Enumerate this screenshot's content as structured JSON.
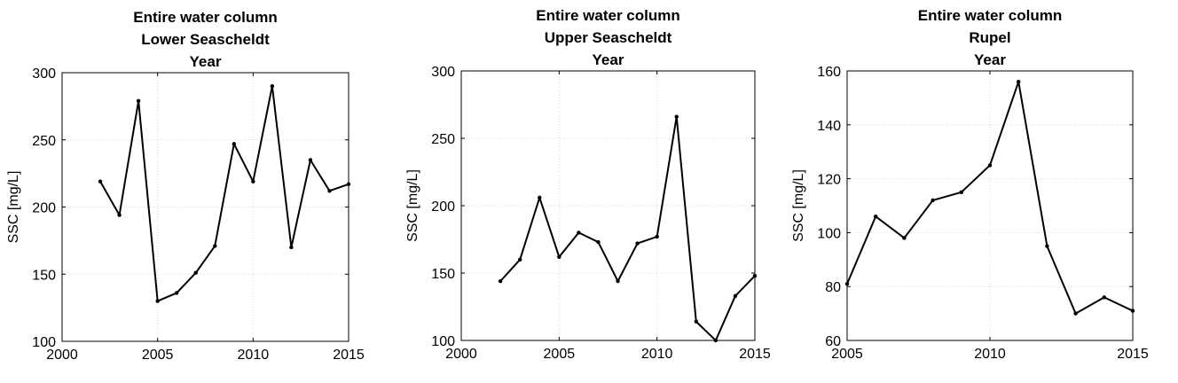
{
  "chart_data": [
    {
      "type": "line",
      "title": [
        "Entire water column",
        "Lower Seascheldt",
        "Year"
      ],
      "xlabel": "",
      "ylabel": "SSC [mg/L]",
      "xlim": [
        2000,
        2015
      ],
      "ylim": [
        100,
        300
      ],
      "xticks": [
        2000,
        2005,
        2010,
        2015
      ],
      "yticks": [
        100,
        150,
        200,
        250,
        300
      ],
      "grid": true,
      "x": [
        2002,
        2003,
        2004,
        2005,
        2006,
        2007,
        2008,
        2009,
        2010,
        2011,
        2012,
        2013,
        2014,
        2015
      ],
      "y": [
        219,
        194,
        279,
        130,
        136,
        151,
        171,
        247,
        219,
        290,
        170,
        235,
        212,
        217
      ]
    },
    {
      "type": "line",
      "title": [
        "Entire water column",
        "Upper Seascheldt",
        "Year"
      ],
      "xlabel": "",
      "ylabel": "SSC [mg/L]",
      "xlim": [
        2000,
        2015
      ],
      "ylim": [
        100,
        300
      ],
      "xticks": [
        2000,
        2005,
        2010,
        2015
      ],
      "yticks": [
        100,
        150,
        200,
        250,
        300
      ],
      "grid": true,
      "x": [
        2002,
        2003,
        2004,
        2005,
        2006,
        2007,
        2008,
        2009,
        2010,
        2011,
        2012,
        2013,
        2014,
        2015
      ],
      "y": [
        144,
        160,
        206,
        162,
        180,
        173,
        144,
        172,
        177,
        266,
        114,
        100,
        133,
        148
      ]
    },
    {
      "type": "line",
      "title": [
        "Entire water column",
        "Rupel",
        "Year"
      ],
      "xlabel": "",
      "ylabel": "SSC [mg/L]",
      "xlim": [
        2005,
        2015
      ],
      "ylim": [
        60,
        160
      ],
      "xticks": [
        2005,
        2010,
        2015
      ],
      "yticks": [
        60,
        80,
        100,
        120,
        140,
        160
      ],
      "grid": true,
      "x": [
        2005,
        2006,
        2007,
        2008,
        2009,
        2010,
        2011,
        2012,
        2013,
        2014,
        2015
      ],
      "y": [
        81,
        106,
        98,
        112,
        115,
        125,
        156,
        95,
        70,
        76,
        71
      ]
    }
  ]
}
